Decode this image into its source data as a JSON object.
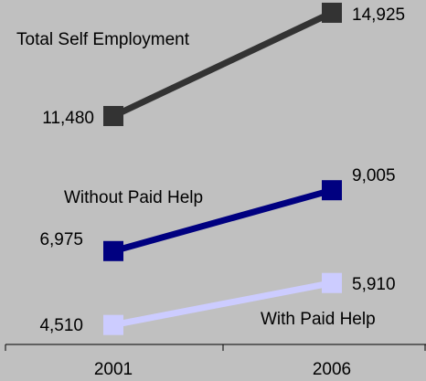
{
  "chart_data": {
    "type": "line",
    "categories": [
      "2001",
      "2006"
    ],
    "series": [
      {
        "name": "Total Self Employment",
        "color": "#333333",
        "values": [
          11480,
          14925
        ],
        "value_labels": [
          "11,480",
          "14,925"
        ]
      },
      {
        "name": "Without Paid Help",
        "color": "#000080",
        "values": [
          6975,
          9005
        ],
        "value_labels": [
          "6,975",
          "9,005"
        ]
      },
      {
        "name": "With Paid Help",
        "color": "#ccccff",
        "values": [
          4510,
          5910
        ],
        "value_labels": [
          "4,510",
          "5,910"
        ]
      }
    ],
    "ylim": [
      4000,
      15000
    ]
  }
}
